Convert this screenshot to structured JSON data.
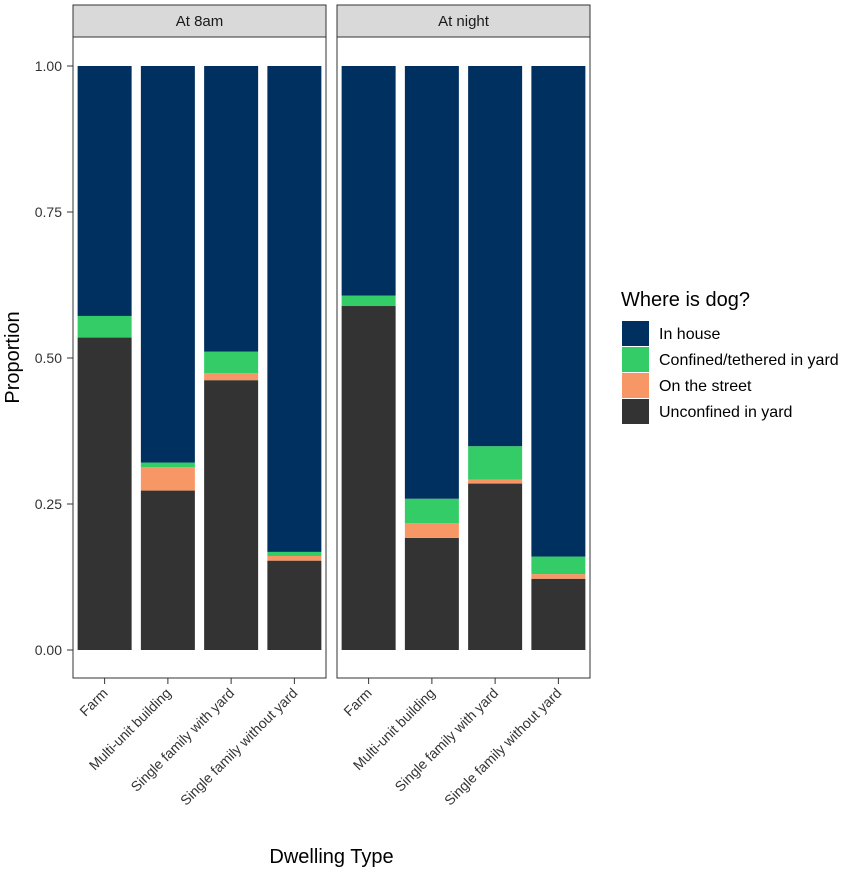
{
  "chart_data": {
    "type": "bar",
    "stacked": true,
    "ylabel": "Proportion",
    "xlabel": "Dwelling Type",
    "ylim": [
      0,
      1
    ],
    "yticks": [
      "0.00",
      "0.25",
      "0.50",
      "0.75",
      "1.00"
    ],
    "ytick_values": [
      0,
      0.25,
      0.5,
      0.75,
      1.0
    ],
    "categories": [
      "Farm",
      "Multi-unit building",
      "Single family with yard",
      "Single family without yard"
    ],
    "legend": {
      "title": "Where is dog?",
      "position": "right",
      "items": [
        {
          "label": "In house",
          "color": "#00305f"
        },
        {
          "label": "Confined/tethered in yard",
          "color": "#33cc66"
        },
        {
          "label": "On the street",
          "color": "#f79766"
        },
        {
          "label": "Unconfined in yard",
          "color": "#333333"
        }
      ]
    },
    "stack_order_bottom_to_top": [
      "Unconfined in yard",
      "On the street",
      "Confined/tethered in yard",
      "In house"
    ],
    "panels": [
      {
        "title": "At 8am",
        "series": [
          {
            "name": "Unconfined in yard",
            "values": [
              0.535,
              0.273,
              0.462,
              0.153
            ]
          },
          {
            "name": "On the street",
            "values": [
              0.0,
              0.04,
              0.012,
              0.008
            ]
          },
          {
            "name": "Confined/tethered in yard",
            "values": [
              0.037,
              0.008,
              0.037,
              0.007
            ]
          },
          {
            "name": "In house",
            "values": [
              0.428,
              0.679,
              0.489,
              0.832
            ]
          }
        ]
      },
      {
        "title": "At night",
        "series": [
          {
            "name": "Unconfined in yard",
            "values": [
              0.589,
              0.192,
              0.285,
              0.122
            ]
          },
          {
            "name": "On the street",
            "values": [
              0.0,
              0.025,
              0.007,
              0.008
            ]
          },
          {
            "name": "Confined/tethered in yard",
            "values": [
              0.018,
              0.042,
              0.057,
              0.03
            ]
          },
          {
            "name": "In house",
            "values": [
              0.393,
              0.741,
              0.651,
              0.84
            ]
          }
        ]
      }
    ]
  }
}
